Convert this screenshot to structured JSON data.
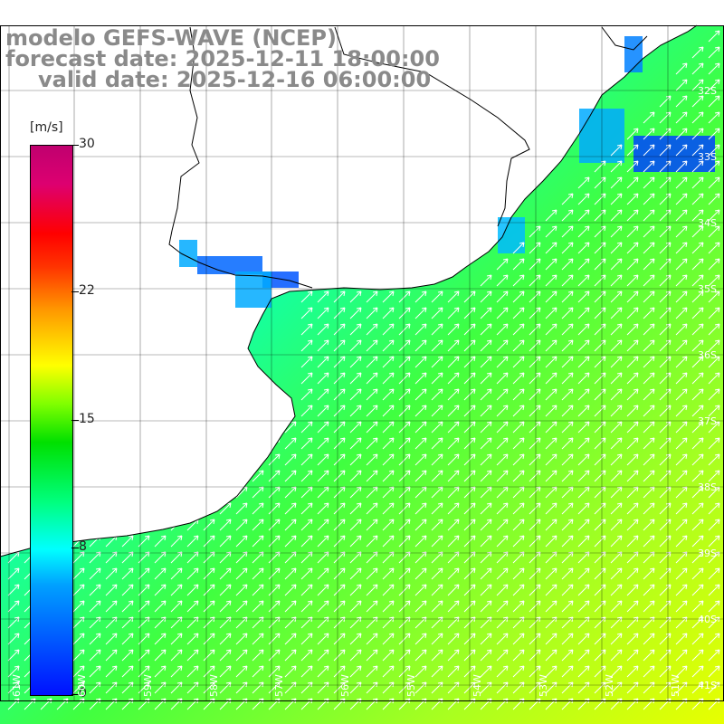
{
  "title": {
    "line1": "modelo GEFS-WAVE (NCEP)",
    "line2": "forecast date: 2025-12-11 18:00:00",
    "line3": "valid date: 2025-12-16 06:00:00"
  },
  "colorbar": {
    "units": "[m/s]",
    "ticks": [
      "30",
      "22",
      "15",
      "8",
      "0"
    ],
    "tick_values": [
      30,
      22,
      15,
      8,
      0
    ],
    "colors": [
      "#0010ff",
      "#00ffff",
      "#00e000",
      "#ffff00",
      "#ff0000",
      "#c0006f"
    ]
  },
  "lat_labels": [
    "32S",
    "33S",
    "34S",
    "35S",
    "36S",
    "37S",
    "38S",
    "39S",
    "40S",
    "41S"
  ],
  "lon_labels": [
    "61W",
    "60W",
    "59W",
    "58W",
    "57W",
    "56W",
    "55W",
    "54W",
    "53W",
    "52W",
    "51W"
  ],
  "colors": {
    "land": "#ffffff",
    "grid": "#000000",
    "coast": "#000000",
    "arrows": "#ffffff",
    "title": "#8a8a8a"
  }
}
